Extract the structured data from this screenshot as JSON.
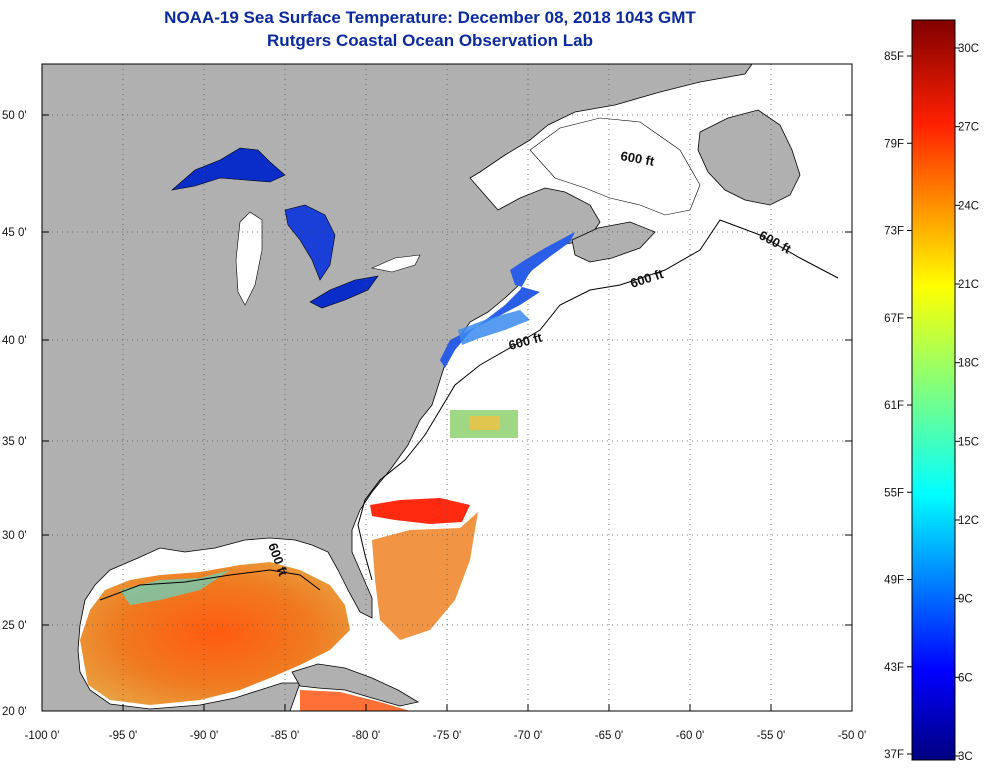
{
  "header": {
    "title": "NOAA-19 Sea Surface Temperature:  December 08, 2018 1043 GMT",
    "subtitle": "Rutgers Coastal Ocean Observation Lab"
  },
  "map": {
    "lon_range": [
      -100,
      -50
    ],
    "lat_range": [
      20,
      52.5
    ],
    "lon_ticks": [
      {
        "value": -100,
        "label": "-100 0'"
      },
      {
        "value": -95,
        "label": "-95 0'"
      },
      {
        "value": -90,
        "label": "-90 0'"
      },
      {
        "value": -85,
        "label": "-85 0'"
      },
      {
        "value": -80,
        "label": "-80 0'"
      },
      {
        "value": -75,
        "label": "-75 0'"
      },
      {
        "value": -70,
        "label": "-70 0'"
      },
      {
        "value": -65,
        "label": "-65 0'"
      },
      {
        "value": -60,
        "label": "-60 0'"
      },
      {
        "value": -55,
        "label": "-55 0'"
      },
      {
        "value": -50,
        "label": "-50 0'"
      }
    ],
    "lat_ticks": [
      {
        "value": 50,
        "label": "50 0'"
      },
      {
        "value": 45,
        "label": "45 0'"
      },
      {
        "value": 40,
        "label": "40 0'"
      },
      {
        "value": 35,
        "label": "35 0'"
      },
      {
        "value": 30,
        "label": "30 0'"
      },
      {
        "value": 25,
        "label": "25 0'"
      },
      {
        "value": 20,
        "label": "20 0'"
      }
    ],
    "isobath_labels": [
      "600 ft",
      "600 ft",
      "600 ft",
      "600 ft",
      "600 ft"
    ]
  },
  "colorbar": {
    "celsius_labels": [
      "30C",
      "27C",
      "24C",
      "21C",
      "18C",
      "15C",
      "12C",
      "9C",
      "6C",
      "3C"
    ],
    "fahrenheit_labels": [
      "85F",
      "79F",
      "73F",
      "67F",
      "61F",
      "55F",
      "49F",
      "43F",
      "37F"
    ]
  },
  "colors": {
    "land": "#b0b0b0",
    "title": "#0a2a9e",
    "cold": "#0a2cc8",
    "warm": "#e84a10"
  }
}
